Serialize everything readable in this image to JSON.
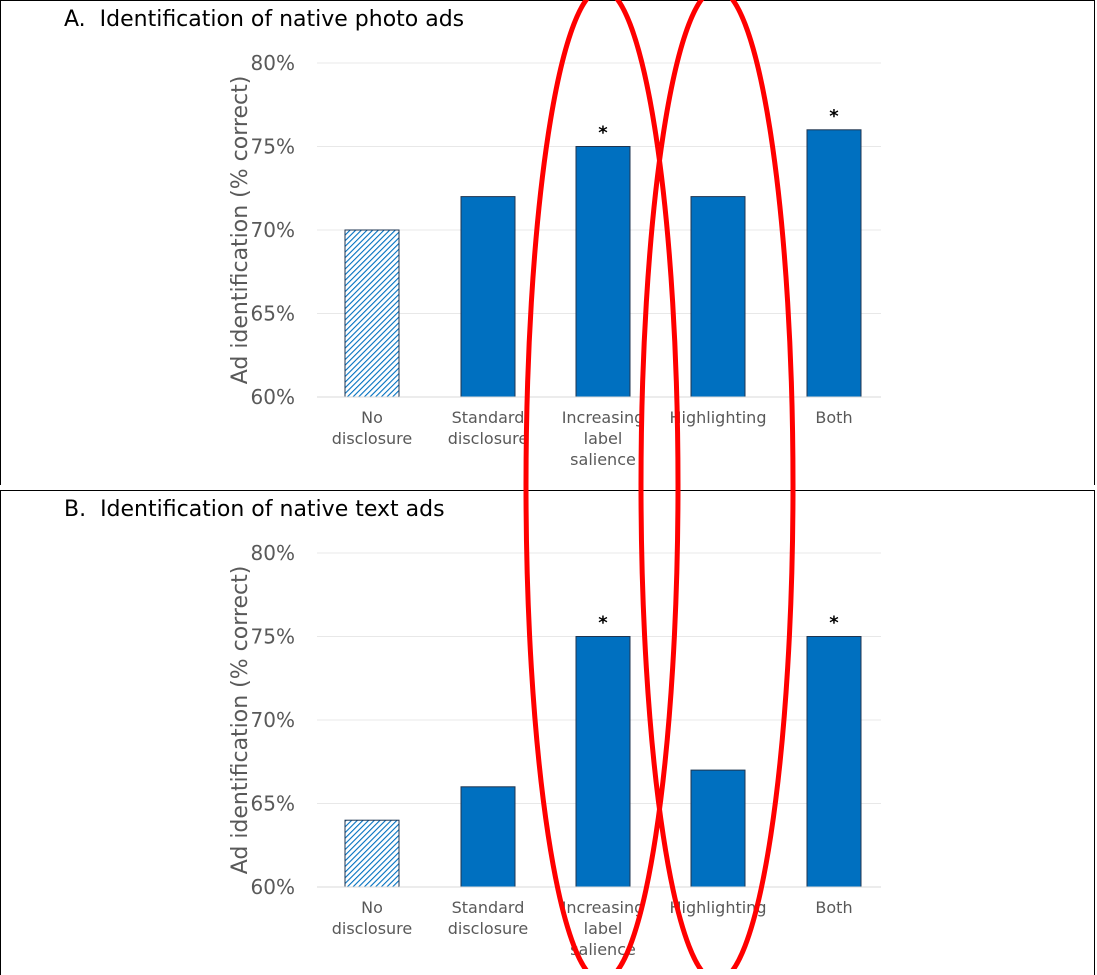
{
  "panels": [
    {
      "heading": "A.  Identification of native photo ads",
      "chart_data": {
        "type": "bar",
        "categories": [
          [
            "No",
            "disclosure"
          ],
          [
            "Standard",
            "disclosure"
          ],
          [
            "Increasing",
            "label",
            "salience"
          ],
          [
            "Highlighting"
          ],
          [
            "Both"
          ]
        ],
        "values": [
          70,
          72,
          75,
          72,
          76
        ],
        "significance": [
          "",
          "",
          "*",
          "",
          "*"
        ],
        "ylabel": "Ad identification (% correct)",
        "ylim": [
          60,
          80
        ],
        "yticks": [
          "60%",
          "65%",
          "70%",
          "75%",
          "80%"
        ],
        "ytick_values": [
          60,
          65,
          70,
          75,
          80
        ],
        "grid": true,
        "baseline_pattern": "hatched"
      }
    },
    {
      "heading": "B.  Identification of native text ads",
      "chart_data": {
        "type": "bar",
        "categories": [
          [
            "No",
            "disclosure"
          ],
          [
            "Standard",
            "disclosure"
          ],
          [
            "Increasing",
            "label",
            "salience"
          ],
          [
            "Highlighting"
          ],
          [
            "Both"
          ]
        ],
        "values": [
          64,
          66,
          75,
          67,
          75
        ],
        "significance": [
          "",
          "",
          "*",
          "",
          "*"
        ],
        "ylabel": "Ad identification (% correct)",
        "ylim": [
          60,
          80
        ],
        "yticks": [
          "60%",
          "65%",
          "70%",
          "75%",
          "80%"
        ],
        "ytick_values": [
          60,
          65,
          70,
          75,
          80
        ],
        "grid": true,
        "baseline_pattern": "hatched"
      }
    }
  ],
  "colors": {
    "bar": "#0070c0",
    "hatch": "#9dc3e6",
    "grid": "#e8e8e8",
    "tick_text": "#595959",
    "highlight_ellipse": "#ff0000"
  },
  "annotations": {
    "ellipses": [
      {
        "name": "ellipse-increasing-label-salience",
        "wraps_category": 2
      },
      {
        "name": "ellipse-highlighting",
        "wraps_category": 3
      }
    ]
  }
}
